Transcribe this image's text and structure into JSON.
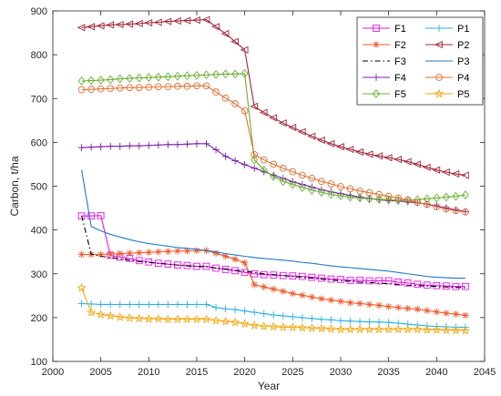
{
  "chart_data": {
    "type": "line",
    "xlabel": "Year",
    "ylabel": "Carbon, t/ha",
    "xlim": [
      2000,
      2045
    ],
    "ylim": [
      100,
      900
    ],
    "xticks": [
      2000,
      2005,
      2010,
      2015,
      2020,
      2025,
      2030,
      2035,
      2040,
      2045
    ],
    "yticks": [
      100,
      200,
      300,
      400,
      500,
      600,
      700,
      800,
      900
    ],
    "grid": false,
    "legend_position": "top-right",
    "series": [
      {
        "name": "F1",
        "color": "#e815e8",
        "marker": "square",
        "x": [
          2003,
          2004,
          2005,
          2006,
          2007,
          2008,
          2009,
          2010,
          2011,
          2012,
          2013,
          2014,
          2015,
          2016,
          2017,
          2018,
          2019,
          2020,
          2021,
          2022,
          2023,
          2024,
          2025,
          2026,
          2027,
          2028,
          2029,
          2030,
          2031,
          2032,
          2033,
          2034,
          2035,
          2036,
          2037,
          2038,
          2039,
          2040,
          2041,
          2042,
          2043
        ],
        "values": [
          432,
          432,
          433,
          342,
          338,
          335,
          330,
          327,
          324,
          322,
          320,
          319,
          317,
          317,
          313,
          310,
          307,
          303,
          300,
          298,
          297,
          296,
          295,
          294,
          292,
          290,
          288,
          287,
          285,
          285,
          284,
          284,
          284,
          281,
          279,
          276,
          274,
          273,
          272,
          271,
          271
        ]
      },
      {
        "name": "F2",
        "color": "#f05a2a",
        "marker": "asterisk",
        "x": [
          2003,
          2004,
          2005,
          2006,
          2007,
          2008,
          2009,
          2010,
          2011,
          2012,
          2013,
          2014,
          2015,
          2016,
          2017,
          2018,
          2019,
          2020,
          2021,
          2022,
          2023,
          2024,
          2025,
          2026,
          2027,
          2028,
          2029,
          2030,
          2031,
          2032,
          2033,
          2034,
          2035,
          2036,
          2037,
          2038,
          2039,
          2040,
          2041,
          2042,
          2043
        ],
        "values": [
          344,
          344,
          344,
          345,
          346,
          347,
          348,
          349,
          350,
          351,
          352,
          352,
          353,
          353,
          347,
          340,
          333,
          325,
          275,
          270,
          265,
          260,
          255,
          251,
          247,
          243,
          240,
          237,
          234,
          232,
          230,
          228,
          225,
          223,
          221,
          219,
          216,
          213,
          210,
          208,
          205
        ]
      },
      {
        "name": "F3",
        "color": "#000000",
        "marker": "none",
        "dash": "dashdot",
        "x": [
          2003,
          2004,
          2005,
          2006,
          2007,
          2008,
          2009,
          2010,
          2011,
          2012,
          2013,
          2014,
          2015,
          2016,
          2017,
          2018,
          2019,
          2020,
          2021,
          2022,
          2023,
          2024,
          2025,
          2026,
          2027,
          2028,
          2029,
          2030,
          2031,
          2032,
          2033,
          2034,
          2035,
          2036,
          2037,
          2038,
          2039,
          2040,
          2041,
          2042,
          2043
        ],
        "values": [
          433,
          345,
          340,
          337,
          334,
          331,
          328,
          326,
          324,
          322,
          320,
          318,
          317,
          316,
          313,
          311,
          308,
          306,
          303,
          300,
          298,
          296,
          294,
          292,
          290,
          288,
          286,
          284,
          283,
          281,
          280,
          279,
          277,
          276,
          274,
          273,
          272,
          271,
          270,
          269,
          268
        ]
      },
      {
        "name": "F4",
        "color": "#7b1fa2",
        "marker": "plus",
        "x": [
          2003,
          2004,
          2005,
          2006,
          2007,
          2008,
          2009,
          2010,
          2011,
          2012,
          2013,
          2014,
          2015,
          2016,
          2017,
          2018,
          2019,
          2020,
          2021,
          2022,
          2023,
          2024,
          2025,
          2026,
          2027,
          2028,
          2029,
          2030,
          2031,
          2032,
          2033,
          2034,
          2035,
          2036,
          2037,
          2038,
          2039,
          2040,
          2041,
          2042,
          2043
        ],
        "values": [
          588,
          589,
          590,
          591,
          591,
          592,
          592,
          593,
          594,
          595,
          595,
          596,
          597,
          597,
          583,
          568,
          558,
          549,
          541,
          533,
          525,
          518,
          510,
          504,
          498,
          492,
          487,
          483,
          479,
          475,
          472,
          469,
          467,
          466,
          464,
          462,
          459,
          455,
          450,
          446,
          442
        ]
      },
      {
        "name": "F5",
        "color": "#6ab033",
        "marker": "diamond",
        "x": [
          2003,
          2004,
          2005,
          2006,
          2007,
          2008,
          2009,
          2010,
          2011,
          2012,
          2013,
          2014,
          2015,
          2016,
          2017,
          2018,
          2019,
          2020,
          2021,
          2022,
          2023,
          2024,
          2025,
          2026,
          2027,
          2028,
          2029,
          2030,
          2031,
          2032,
          2033,
          2034,
          2035,
          2036,
          2037,
          2038,
          2039,
          2040,
          2041,
          2042,
          2043
        ],
        "values": [
          740,
          741,
          742,
          743,
          745,
          746,
          747,
          748,
          749,
          750,
          751,
          752,
          753,
          754,
          755,
          756,
          756,
          757,
          560,
          537,
          522,
          511,
          504,
          497,
          491,
          486,
          481,
          478,
          475,
          473,
          471,
          470,
          469,
          468,
          468,
          469,
          471,
          473,
          475,
          477,
          480
        ]
      },
      {
        "name": "P1",
        "color": "#2db1e6",
        "marker": "plus",
        "x": [
          2003,
          2004,
          2005,
          2006,
          2007,
          2008,
          2009,
          2010,
          2011,
          2012,
          2013,
          2014,
          2015,
          2016,
          2017,
          2018,
          2019,
          2020,
          2021,
          2022,
          2023,
          2024,
          2025,
          2026,
          2027,
          2028,
          2029,
          2030,
          2031,
          2032,
          2033,
          2034,
          2035,
          2036,
          2037,
          2038,
          2039,
          2040,
          2041,
          2042,
          2043
        ],
        "values": [
          232,
          231,
          230,
          230,
          230,
          230,
          230,
          230,
          230,
          230,
          230,
          230,
          230,
          230,
          223,
          220,
          218,
          215,
          212,
          209,
          206,
          204,
          202,
          200,
          198,
          196,
          195,
          193,
          192,
          191,
          190,
          190,
          189,
          187,
          185,
          183,
          181,
          180,
          179,
          178,
          178
        ]
      },
      {
        "name": "P2",
        "color": "#a1263a",
        "marker": "triangle-left",
        "x": [
          2003,
          2004,
          2005,
          2006,
          2007,
          2008,
          2009,
          2010,
          2011,
          2012,
          2013,
          2014,
          2015,
          2016,
          2017,
          2018,
          2019,
          2020,
          2021,
          2022,
          2023,
          2024,
          2025,
          2026,
          2027,
          2028,
          2029,
          2030,
          2031,
          2032,
          2033,
          2034,
          2035,
          2036,
          2037,
          2038,
          2039,
          2040,
          2041,
          2042,
          2043
        ],
        "values": [
          862,
          864,
          866,
          868,
          869,
          870,
          871,
          873,
          874,
          876,
          877,
          878,
          879,
          880,
          864,
          848,
          830,
          811,
          682,
          668,
          656,
          644,
          634,
          624,
          614,
          605,
          597,
          590,
          584,
          578,
          573,
          569,
          565,
          561,
          556,
          550,
          543,
          537,
          532,
          528,
          525
        ]
      },
      {
        "name": "P3",
        "color": "#1f78c8",
        "marker": "none",
        "x": [
          2003,
          2004,
          2005,
          2006,
          2007,
          2008,
          2009,
          2010,
          2011,
          2012,
          2013,
          2014,
          2015,
          2016,
          2017,
          2018,
          2019,
          2020,
          2021,
          2022,
          2023,
          2024,
          2025,
          2026,
          2027,
          2028,
          2029,
          2030,
          2031,
          2032,
          2033,
          2034,
          2035,
          2036,
          2037,
          2038,
          2039,
          2040,
          2041,
          2042,
          2043
        ],
        "values": [
          537,
          408,
          398,
          390,
          384,
          378,
          373,
          369,
          366,
          363,
          360,
          358,
          356,
          353,
          350,
          346,
          343,
          340,
          337,
          335,
          333,
          331,
          329,
          326,
          324,
          321,
          318,
          316,
          314,
          312,
          310,
          308,
          306,
          303,
          300,
          297,
          294,
          292,
          291,
          290,
          290
        ]
      },
      {
        "name": "P4",
        "color": "#e07030",
        "marker": "circle",
        "x": [
          2003,
          2004,
          2005,
          2006,
          2007,
          2008,
          2009,
          2010,
          2011,
          2012,
          2013,
          2014,
          2015,
          2016,
          2017,
          2018,
          2019,
          2020,
          2021,
          2022,
          2023,
          2024,
          2025,
          2026,
          2027,
          2028,
          2029,
          2030,
          2031,
          2032,
          2033,
          2034,
          2035,
          2036,
          2037,
          2038,
          2039,
          2040,
          2041,
          2042,
          2043
        ],
        "values": [
          720,
          721,
          722,
          723,
          724,
          725,
          725,
          726,
          727,
          727,
          728,
          728,
          729,
          729,
          715,
          701,
          688,
          672,
          572,
          560,
          550,
          541,
          533,
          525,
          518,
          511,
          505,
          499,
          494,
          489,
          485,
          481,
          477,
          473,
          468,
          463,
          458,
          453,
          448,
          444,
          441
        ]
      },
      {
        "name": "P5",
        "color": "#f2a916",
        "marker": "star",
        "x": [
          2003,
          2004,
          2005,
          2006,
          2007,
          2008,
          2009,
          2010,
          2011,
          2012,
          2013,
          2014,
          2015,
          2016,
          2017,
          2018,
          2019,
          2020,
          2021,
          2022,
          2023,
          2024,
          2025,
          2026,
          2027,
          2028,
          2029,
          2030,
          2031,
          2032,
          2033,
          2034,
          2035,
          2036,
          2037,
          2038,
          2039,
          2040,
          2041,
          2042,
          2043
        ],
        "values": [
          268,
          212,
          207,
          204,
          201,
          199,
          198,
          197,
          197,
          196,
          196,
          196,
          196,
          196,
          193,
          191,
          189,
          186,
          182,
          180,
          179,
          178,
          178,
          177,
          176,
          175,
          174,
          173,
          173,
          173,
          173,
          173,
          173,
          173,
          173,
          173,
          172,
          172,
          171,
          171,
          170
        ]
      }
    ]
  }
}
